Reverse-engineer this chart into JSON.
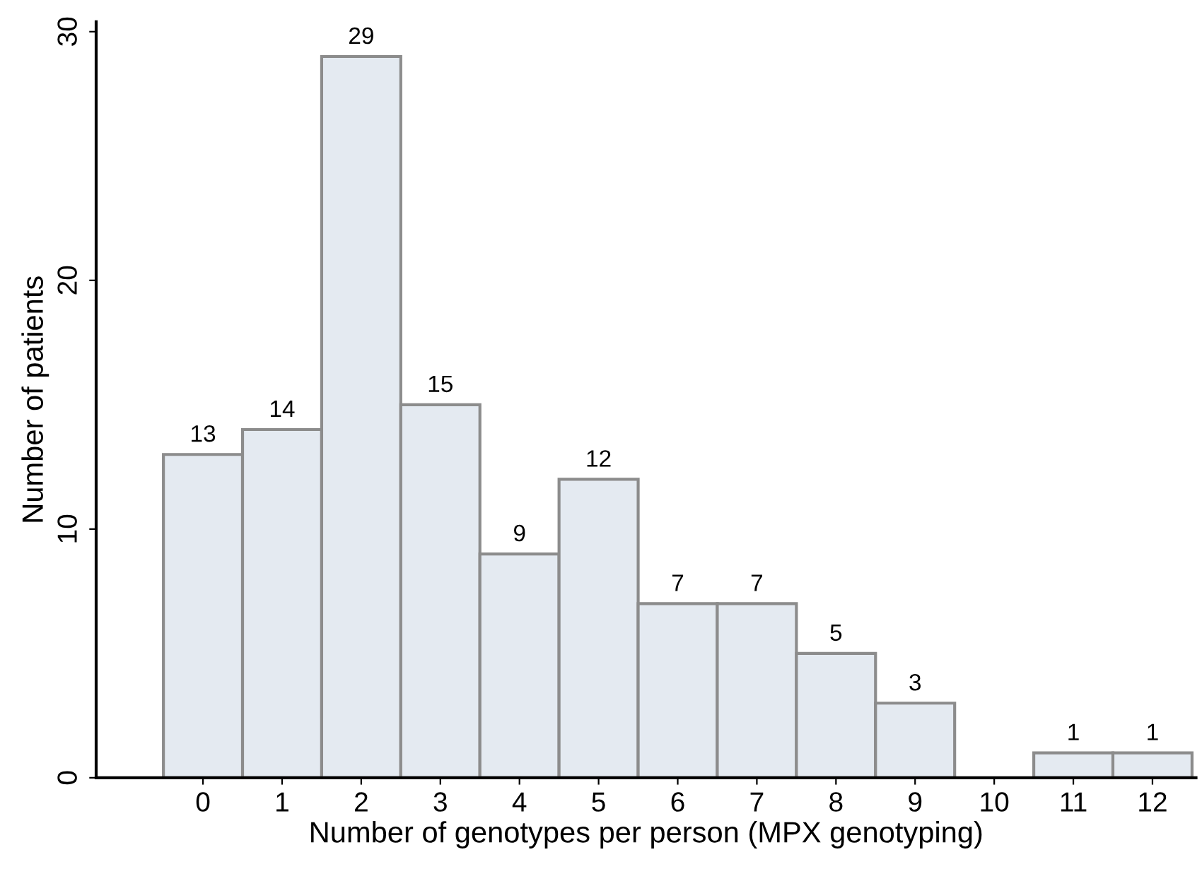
{
  "chart_data": {
    "type": "bar",
    "xlabel": "Number of genotypes per person (MPX genotyping)",
    "ylabel": "Number of patients",
    "categories": [
      "0",
      "1",
      "2",
      "3",
      "4",
      "5",
      "6",
      "7",
      "8",
      "9",
      "10",
      "11",
      "12"
    ],
    "values": [
      13,
      14,
      29,
      15,
      9,
      12,
      7,
      7,
      5,
      3,
      0,
      1,
      1
    ],
    "value_labels": [
      "13",
      "14",
      "29",
      "15",
      "9",
      "12",
      "7",
      "7",
      "5",
      "3",
      null,
      "1",
      "1"
    ],
    "color": "#e4eaf1",
    "ylim": [
      0,
      30.4
    ],
    "yticks": [
      0,
      10,
      20,
      30
    ],
    "grid": false,
    "legend": false
  }
}
